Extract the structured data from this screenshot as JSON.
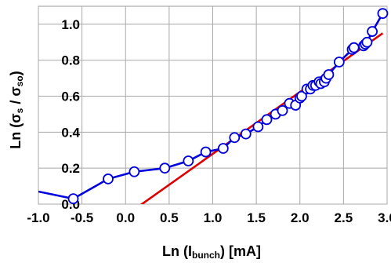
{
  "chart_data": {
    "type": "line",
    "xlabel_parts": [
      "Ln (",
      "I",
      "bunch",
      ") [mA]"
    ],
    "ylabel_parts": [
      "Ln (",
      "σ",
      "s",
      " / ",
      "σ",
      "so",
      ")"
    ],
    "xlim": [
      -1.0,
      3.0
    ],
    "ylim": [
      0.0,
      1.1
    ],
    "x_ticks": [
      -1.0,
      -0.5,
      0.0,
      0.5,
      1.0,
      1.5,
      2.0,
      2.5,
      3.0
    ],
    "x_tick_labels": [
      "-1.0",
      "-0.5",
      "0.0",
      "0.5",
      "1.0",
      "1.5",
      "2.0",
      "2.5",
      "3.0"
    ],
    "y_ticks": [
      0.0,
      0.2,
      0.4,
      0.6,
      0.8,
      1.0
    ],
    "y_tick_labels": [
      "0.0",
      "0.2",
      "0.4",
      "0.6",
      "0.8",
      "1.0"
    ],
    "grid": true,
    "colors": {
      "measured": "#0000dd",
      "fit": "#dd0000",
      "marker_fill": "#ffffff"
    },
    "series": [
      {
        "style": "line-with-open-circles",
        "x": [
          -1.0,
          -0.6,
          -0.2,
          0.1,
          0.45,
          0.72,
          0.92,
          1.12,
          1.25,
          1.38,
          1.52,
          1.62,
          1.72,
          1.8,
          1.88,
          1.95,
          2.0,
          2.02,
          2.08,
          2.12,
          2.15,
          2.18,
          2.22,
          2.24,
          2.28,
          2.3,
          2.33,
          2.45,
          2.6,
          2.62,
          2.73,
          2.75,
          2.77,
          2.83,
          2.95
        ],
        "y": [
          0.07,
          0.03,
          0.14,
          0.18,
          0.2,
          0.24,
          0.29,
          0.31,
          0.37,
          0.39,
          0.43,
          0.47,
          0.5,
          0.52,
          0.56,
          0.55,
          0.59,
          0.6,
          0.64,
          0.64,
          0.66,
          0.66,
          0.68,
          0.67,
          0.68,
          0.7,
          0.72,
          0.79,
          0.86,
          0.87,
          0.88,
          0.89,
          0.9,
          0.96,
          1.06
        ]
      },
      {
        "style": "line",
        "x": [
          0.1,
          2.95
        ],
        "y": [
          -0.03,
          0.95
        ]
      }
    ]
  }
}
